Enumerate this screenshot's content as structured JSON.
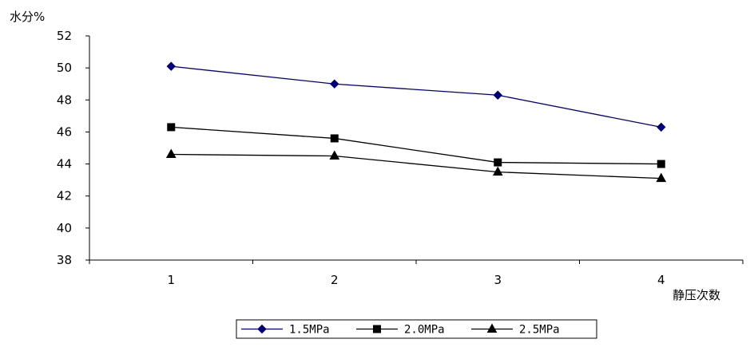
{
  "chart_data": {
    "type": "line",
    "title": "",
    "ylabel": "水分%",
    "xlabel": "静压次数",
    "categories": [
      "1",
      "2",
      "3",
      "4"
    ],
    "ylim": [
      38,
      52
    ],
    "yticks": [
      "38",
      "40",
      "42",
      "44",
      "46",
      "48",
      "50",
      "52"
    ],
    "grid": false,
    "legend_position": "bottom",
    "series": [
      {
        "name": "1.5MPa",
        "values": [
          50.1,
          49.0,
          48.3,
          46.3
        ],
        "color": "#00007f",
        "marker": "diamond"
      },
      {
        "name": "2.0MPa",
        "values": [
          46.3,
          45.6,
          44.1,
          44.0
        ],
        "color": "#000000",
        "marker": "square"
      },
      {
        "name": "2.5MPa",
        "values": [
          44.6,
          44.5,
          43.5,
          43.1
        ],
        "color": "#000000",
        "marker": "triangle"
      }
    ]
  }
}
